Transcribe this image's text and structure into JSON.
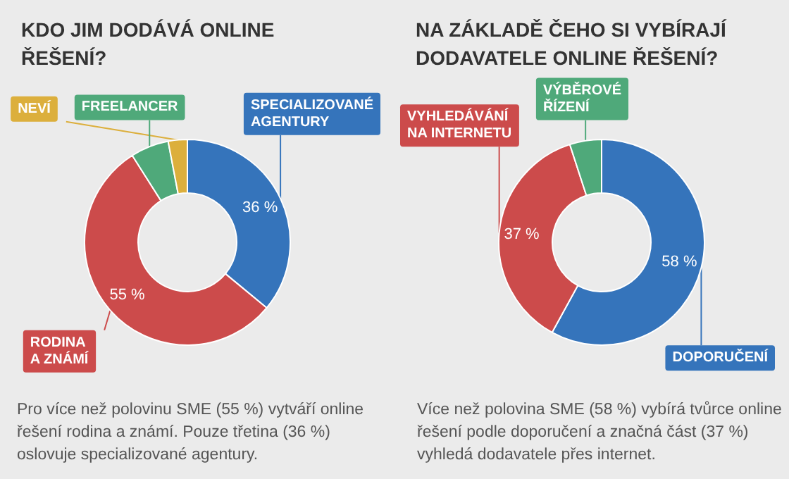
{
  "chart_data": [
    {
      "type": "donut",
      "title": "KDO JIM DODÁVÁ ONLINE ŘEŠENÍ?",
      "categories": [
        "SPECIALIZOVANÉ\nAGENTURY",
        "RODINA\nA ZNÁMÍ",
        "FREELANCER",
        "NEVÍ"
      ],
      "values": [
        36,
        55,
        6,
        3
      ],
      "colors": [
        "#3574bb",
        "#cc4b4b",
        "#4fa97a",
        "#dcaf3c"
      ],
      "value_labels": [
        "36 %",
        "55 %",
        null,
        null
      ],
      "annotations": [
        "Pro více než polovinu SME (55 %) vytváří online řešení rodina a známí. Pouze třetina (36 %) oslovuje specializované agentury."
      ]
    },
    {
      "type": "donut",
      "title": "NA ZÁKLADĚ ČEHO SI VYBÍRAJÍ DODAVATELE ONLINE ŘEŠENÍ?",
      "categories": [
        "DOPORUČENÍ",
        "VYHLEDÁVÁNÍ\nNA INTERNETU",
        "VÝBĚROVÉ\nŘÍZENÍ"
      ],
      "values": [
        58,
        37,
        5
      ],
      "colors": [
        "#3574bb",
        "#cc4b4b",
        "#4fa97a"
      ],
      "value_labels": [
        "58 %",
        "37 %",
        null
      ],
      "annotations": [
        "Více než polovina SME (58 %) vybírá tvůrce online řešení podle doporučení a značná část (37 %) vyhledá dodavatele přes internet."
      ]
    }
  ]
}
